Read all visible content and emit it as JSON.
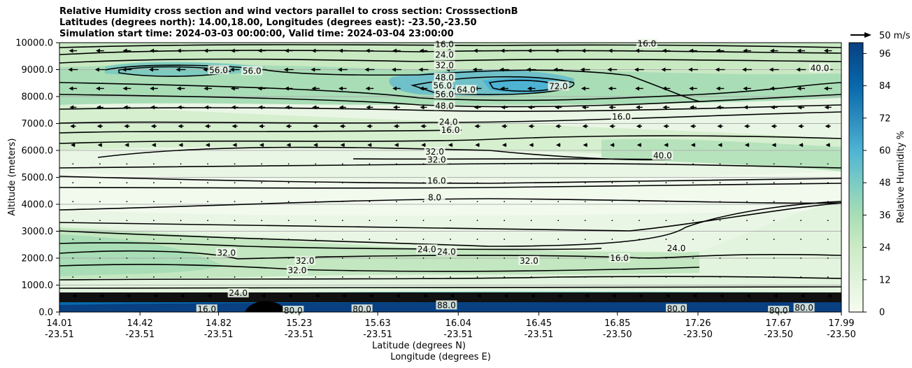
{
  "chart_data": {
    "type": "heatmap",
    "title_lines": [
      "Relative Humidity cross section and wind vectors parallel to cross section: CrosssectionB",
      "Latitudes (degrees north): 14.00,18.00, Longitudes (degrees east): -23.50,-23.50",
      "Simulation start time: 2024-03-03 00:00:00, Valid time: 2024-03-04 23:00:00"
    ],
    "ylabel": "Altitude (meters)",
    "xlabel": "Latitude (degrees N)",
    "xlabel2": "Longitude (degrees E)",
    "ylim": [
      0,
      10000
    ],
    "y_ticks": [
      "0.0",
      "1000.0",
      "2000.0",
      "3000.0",
      "4000.0",
      "5000.0",
      "6000.0",
      "7000.0",
      "8000.0",
      "9000.0",
      "10000.0"
    ],
    "x_ticks": [
      {
        "lat": "14.01",
        "lon": "-23.51"
      },
      {
        "lat": "14.42",
        "lon": "-23.51"
      },
      {
        "lat": "14.82",
        "lon": "-23.51"
      },
      {
        "lat": "15.23",
        "lon": "-23.51"
      },
      {
        "lat": "15.63",
        "lon": "-23.51"
      },
      {
        "lat": "16.04",
        "lon": "-23.51"
      },
      {
        "lat": "16.45",
        "lon": "-23.51"
      },
      {
        "lat": "16.85",
        "lon": "-23.50"
      },
      {
        "lat": "17.26",
        "lon": "-23.50"
      },
      {
        "lat": "17.67",
        "lon": "-23.50"
      },
      {
        "lat": "17.99",
        "lon": "-23.50"
      }
    ],
    "colorbar": {
      "label": "Relative Humidity %",
      "range": [
        0,
        100
      ],
      "ticks": [
        "0",
        "12",
        "24",
        "36",
        "48",
        "60",
        "72",
        "84",
        "96"
      ],
      "levels": 25
    },
    "quiver_key": "50 m/s",
    "contour_labels": [
      {
        "text": "16.0",
        "lat": 15.97,
        "alt": 9930
      },
      {
        "text": "24.0",
        "lat": 15.97,
        "alt": 9550
      },
      {
        "text": "32.0",
        "lat": 15.97,
        "alt": 9150
      },
      {
        "text": "48.0",
        "lat": 15.97,
        "alt": 8700
      },
      {
        "text": "56.0",
        "lat": 15.96,
        "alt": 8400
      },
      {
        "text": "56.0",
        "lat": 15.97,
        "alt": 8080
      },
      {
        "text": "48.0",
        "lat": 15.97,
        "alt": 7650
      },
      {
        "text": "64.0",
        "lat": 16.08,
        "alt": 8250
      },
      {
        "text": "72.0",
        "lat": 16.55,
        "alt": 8380
      },
      {
        "text": "56.0",
        "lat": 14.82,
        "alt": 8980
      },
      {
        "text": "56.0",
        "lat": 14.99,
        "alt": 8950
      },
      {
        "text": "16.0",
        "lat": 17.0,
        "alt": 9960
      },
      {
        "text": "40.0",
        "lat": 17.88,
        "alt": 9050
      },
      {
        "text": "24.0",
        "lat": 15.99,
        "alt": 7050
      },
      {
        "text": "16.0",
        "lat": 16.0,
        "alt": 6750
      },
      {
        "text": "16.0",
        "lat": 16.87,
        "alt": 7250
      },
      {
        "text": "32.0",
        "lat": 15.92,
        "alt": 5950
      },
      {
        "text": "32.0",
        "lat": 15.93,
        "alt": 5650
      },
      {
        "text": "40.0",
        "lat": 17.08,
        "alt": 5800
      },
      {
        "text": "16.0",
        "lat": 15.93,
        "alt": 4870
      },
      {
        "text": "8.0",
        "lat": 15.92,
        "alt": 4250
      },
      {
        "text": "24.0",
        "lat": 15.88,
        "alt": 2330
      },
      {
        "text": "24.0",
        "lat": 15.98,
        "alt": 2230
      },
      {
        "text": "32.0",
        "lat": 14.86,
        "alt": 2200
      },
      {
        "text": "32.0",
        "lat": 16.4,
        "alt": 1900
      },
      {
        "text": "16.0",
        "lat": 16.86,
        "alt": 2000
      },
      {
        "text": "24.0",
        "lat": 17.15,
        "alt": 2370
      },
      {
        "text": "32.0",
        "lat": 15.22,
        "alt": 1550
      },
      {
        "text": "32.0",
        "lat": 15.26,
        "alt": 1900
      },
      {
        "text": "24.0",
        "lat": 14.92,
        "alt": 700
      },
      {
        "text": "80.0",
        "lat": 15.2,
        "alt": 50
      },
      {
        "text": "80.0",
        "lat": 15.55,
        "alt": 100
      },
      {
        "text": "88.0",
        "lat": 15.98,
        "alt": 250
      },
      {
        "text": "80.0",
        "lat": 17.15,
        "alt": 120
      },
      {
        "text": "80.0",
        "lat": 17.67,
        "alt": 50
      },
      {
        "text": "80.0",
        "lat": 17.8,
        "alt": 150
      },
      {
        "text": "16.0",
        "lat": 14.76,
        "alt": 100
      }
    ]
  },
  "colors": {
    "low": "#f7fcf0",
    "mid": "#a8ddb5",
    "high": "#084081",
    "contour": "#000000"
  }
}
